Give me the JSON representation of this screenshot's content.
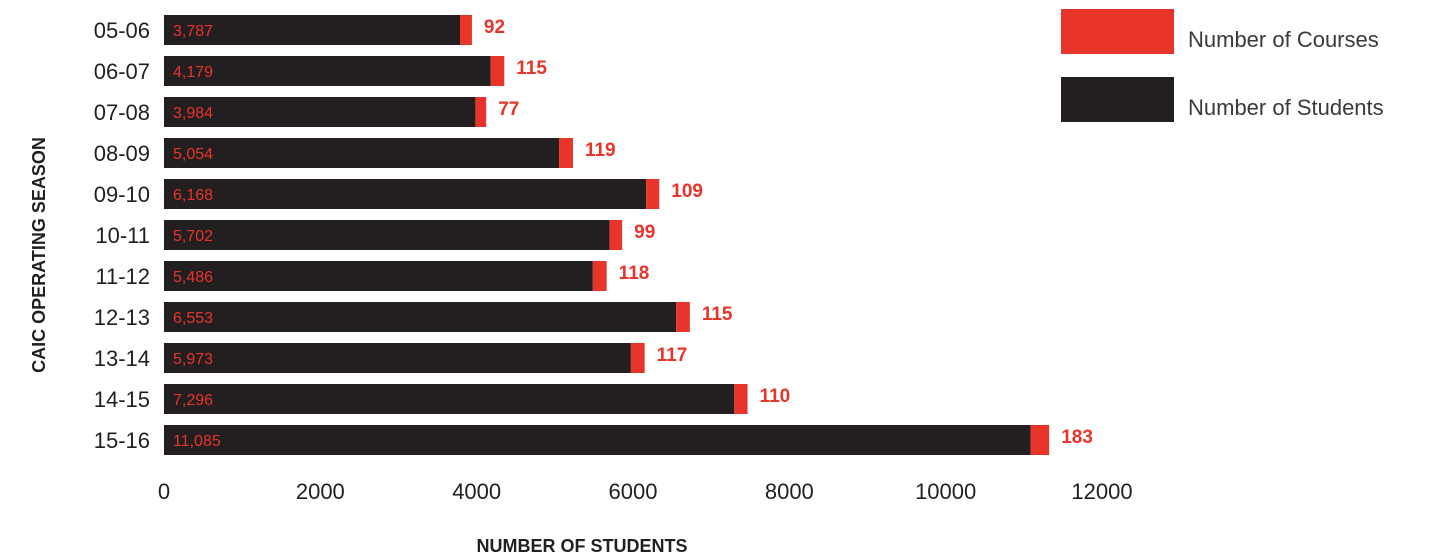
{
  "chart_data": {
    "type": "bar",
    "orientation": "horizontal",
    "stacked": true,
    "categories": [
      "05-06",
      "06-07",
      "07-08",
      "08-09",
      "09-10",
      "10-11",
      "11-12",
      "12-13",
      "13-14",
      "14-15",
      "15-16"
    ],
    "series": [
      {
        "name": "Number of Students",
        "color": "#231f20",
        "values": [
          3787,
          4179,
          3984,
          5054,
          6168,
          5702,
          5486,
          6553,
          5973,
          7296,
          11085
        ],
        "labels": [
          "3,787",
          "4,179",
          "3,984",
          "5,054",
          "6,168",
          "5,702",
          "5,486",
          "6,553",
          "5,973",
          "7,296",
          "11,085"
        ]
      },
      {
        "name": "Number of Courses",
        "color": "#e8342a",
        "values": [
          92,
          115,
          77,
          119,
          109,
          99,
          118,
          115,
          117,
          110,
          183
        ]
      }
    ],
    "xlabel": "NUMBER OF STUDENTS",
    "ylabel": "CAIC OPERATING SEASON",
    "xlim": [
      0,
      12000
    ],
    "xticks": [
      "0",
      "2000",
      "4000",
      "6000",
      "8000",
      "10000",
      "12000"
    ],
    "grid": false,
    "legend_position": "top-right"
  }
}
